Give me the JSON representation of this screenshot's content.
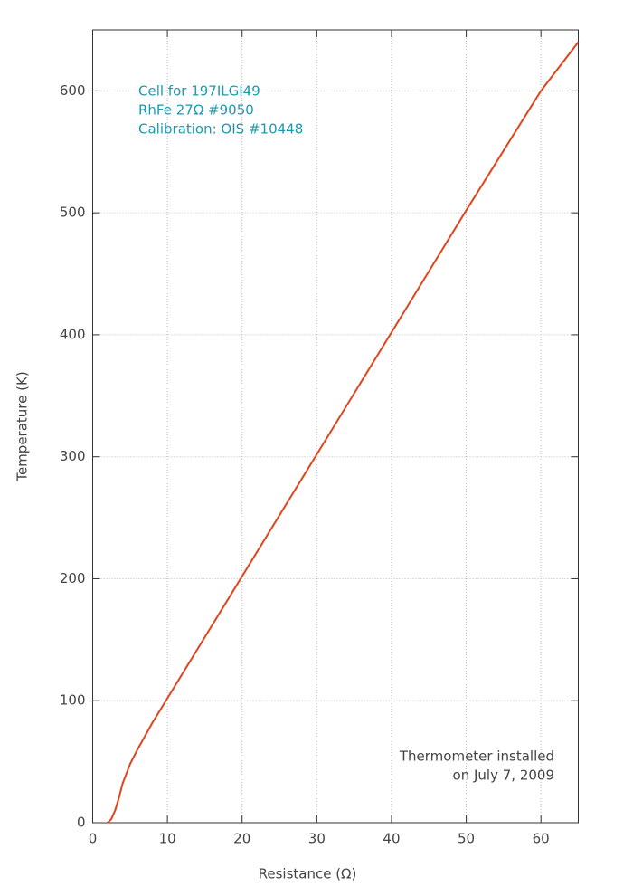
{
  "chart_data": {
    "type": "line",
    "xlabel": "Resistance (Ω)",
    "ylabel": "Temperature (K)",
    "annotations": [
      "Cell for 197ILGI49",
      "RhFe 27Ω #9050",
      "Calibration: OIS #10448",
      "Thermometer installed",
      "on July 7, 2009"
    ],
    "annotation_color": "#1a9ab0",
    "x": [
      2,
      2.5,
      3,
      3.5,
      4,
      5,
      6,
      8,
      10,
      15,
      20,
      30,
      40,
      50,
      60,
      65
    ],
    "series": [
      {
        "name": "Temperature",
        "color": "#e0441c",
        "values": [
          0,
          3,
          10,
          20,
          32,
          48,
          60,
          82,
          102,
          152,
          202,
          302,
          402,
          502,
          600,
          640
        ]
      }
    ],
    "xlim": [
      0,
      65
    ],
    "ylim": [
      0,
      650
    ],
    "xticks": [
      0,
      10,
      20,
      30,
      40,
      50,
      60
    ],
    "yticks": [
      0,
      100,
      200,
      300,
      400,
      500,
      600
    ],
    "grid": true
  }
}
